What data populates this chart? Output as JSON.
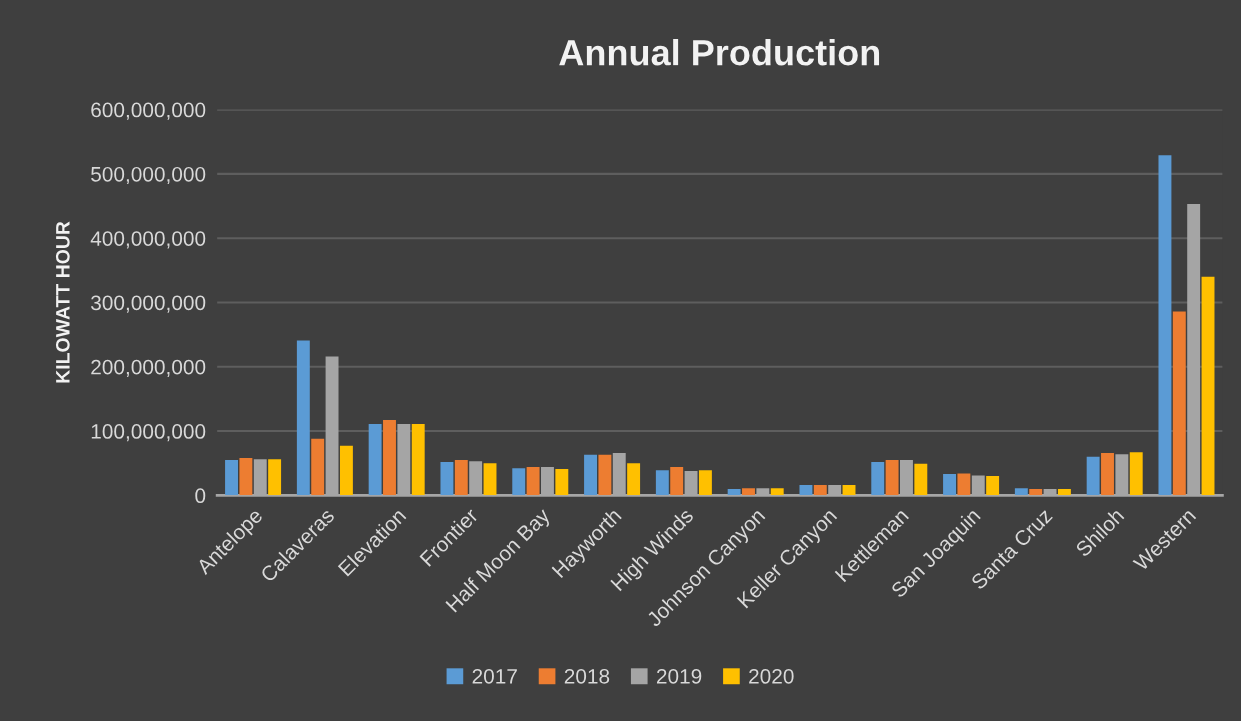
{
  "chart_data": {
    "type": "bar",
    "title": "Annual Production",
    "ylabel": "KILOWATT HOUR",
    "categories": [
      "Antelope",
      "Calaveras",
      "Elevation",
      "Frontier",
      "Half Moon Bay",
      "Hayworth",
      "High Winds",
      "Johnson Canyon",
      "Keller Canyon",
      "Kettleman",
      "San Joaquin",
      "Santa Cruz",
      "Shiloh",
      "Western"
    ],
    "series": [
      {
        "name": "2017",
        "color": "#5b9bd5",
        "values": [
          55000000,
          241000000,
          111000000,
          52000000,
          42000000,
          63000000,
          39000000,
          10000000,
          16000000,
          52000000,
          33000000,
          11000000,
          60000000,
          529000000
        ]
      },
      {
        "name": "2018",
        "color": "#ed7d31",
        "values": [
          58000000,
          88000000,
          117000000,
          55000000,
          44000000,
          63000000,
          44000000,
          11000000,
          16000000,
          55000000,
          34000000,
          10000000,
          66000000,
          286000000
        ]
      },
      {
        "name": "2019",
        "color": "#a5a5a5",
        "values": [
          56000000,
          216000000,
          111000000,
          53000000,
          44000000,
          66000000,
          38000000,
          11000000,
          16000000,
          55000000,
          31000000,
          10000000,
          64000000,
          453000000
        ]
      },
      {
        "name": "2020",
        "color": "#ffc000",
        "values": [
          56000000,
          77000000,
          111000000,
          50000000,
          41000000,
          50000000,
          39000000,
          11000000,
          16000000,
          49000000,
          30000000,
          10000000,
          67000000,
          340000000
        ]
      }
    ],
    "ylim": [
      0,
      600000000
    ],
    "yticks": [
      {
        "value": 0,
        "label": "0"
      },
      {
        "value": 100000000,
        "label": "100,000,000"
      },
      {
        "value": 200000000,
        "label": "200,000,000"
      },
      {
        "value": 300000000,
        "label": "300,000,000"
      },
      {
        "value": 400000000,
        "label": "400,000,000"
      },
      {
        "value": 500000000,
        "label": "500,000,000"
      },
      {
        "value": 600000000,
        "label": "600,000,000"
      }
    ],
    "grid": "y",
    "legend": "bottom"
  }
}
